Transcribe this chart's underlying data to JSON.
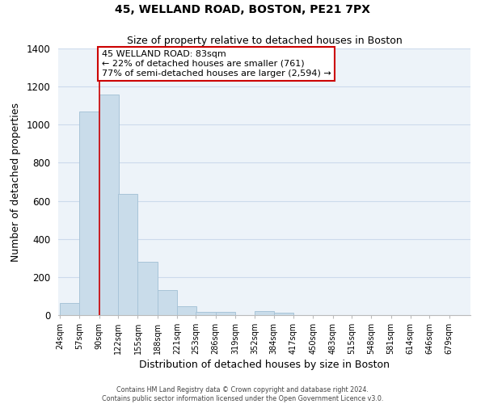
{
  "title": "45, WELLAND ROAD, BOSTON, PE21 7PX",
  "subtitle": "Size of property relative to detached houses in Boston",
  "xlabel": "Distribution of detached houses by size in Boston",
  "ylabel": "Number of detached properties",
  "bar_labels": [
    "24sqm",
    "57sqm",
    "90sqm",
    "122sqm",
    "155sqm",
    "188sqm",
    "221sqm",
    "253sqm",
    "286sqm",
    "319sqm",
    "352sqm",
    "384sqm",
    "417sqm",
    "450sqm",
    "483sqm",
    "515sqm",
    "548sqm",
    "581sqm",
    "614sqm",
    "646sqm",
    "679sqm"
  ],
  "bar_heights": [
    65,
    1070,
    1160,
    635,
    280,
    130,
    47,
    18,
    16,
    0,
    20,
    13,
    0,
    0,
    0,
    0,
    0,
    0,
    0,
    0,
    0
  ],
  "bar_color": "#c9dcea",
  "bar_edge_color": "#a8c4d8",
  "grid_color": "#ccdaec",
  "bg_color": "#edf3f9",
  "vline_color": "#cc0000",
  "ylim": [
    0,
    1400
  ],
  "yticks": [
    0,
    200,
    400,
    600,
    800,
    1000,
    1200,
    1400
  ],
  "annotation_title": "45 WELLAND ROAD: 83sqm",
  "annotation_line1": "← 22% of detached houses are smaller (761)",
  "annotation_line2": "77% of semi-detached houses are larger (2,594) →",
  "annotation_box_color": "#ffffff",
  "annotation_edge_color": "#cc0000",
  "footer_line1": "Contains HM Land Registry data © Crown copyright and database right 2024.",
  "footer_line2": "Contains public sector information licensed under the Open Government Licence v3.0.",
  "bin_width": 33,
  "vline_x": 90
}
